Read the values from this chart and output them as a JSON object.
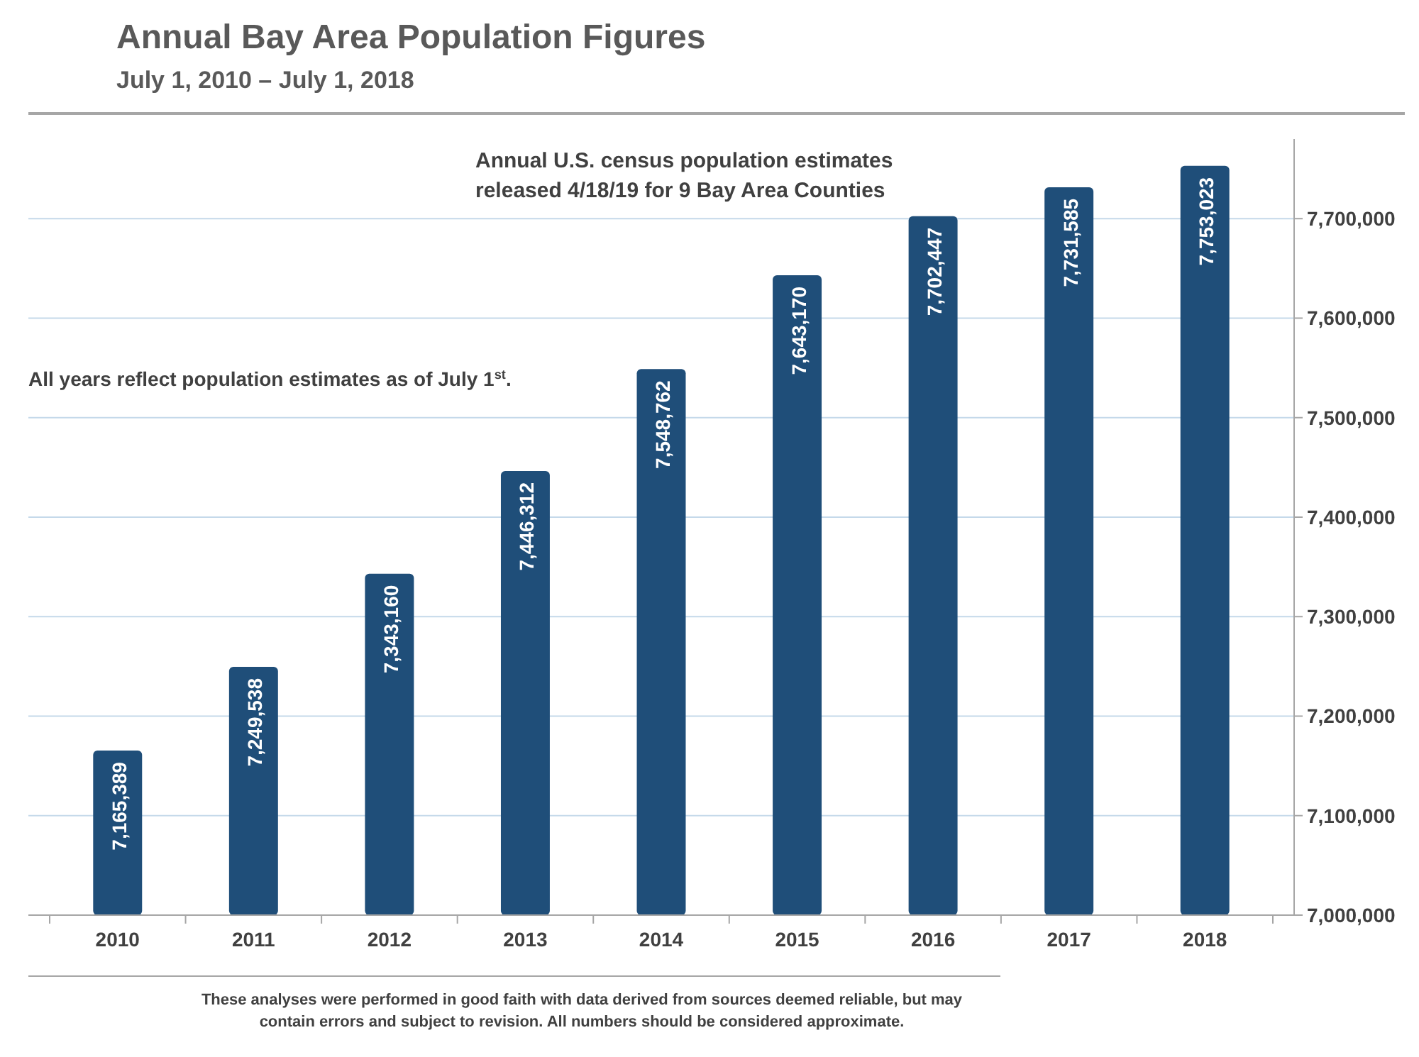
{
  "chart_data": {
    "type": "bar",
    "title": "Annual Bay Area Population Figures",
    "subtitle": "July 1, 2010 – July 1, 2018",
    "categories": [
      "2010",
      "2011",
      "2012",
      "2013",
      "2014",
      "2015",
      "2016",
      "2017",
      "2018"
    ],
    "values": [
      7165389,
      7249538,
      7343160,
      7446312,
      7548762,
      7643170,
      7702447,
      7731585,
      7753023
    ],
    "color": "#1f4e79",
    "ylim": [
      7000000,
      7780000
    ],
    "yticks": [
      {
        "value": 7000000,
        "label": "7,000,000"
      },
      {
        "value": 7100000,
        "label": "7,100,000"
      },
      {
        "value": 7200000,
        "label": "7,200,000"
      },
      {
        "value": 7300000,
        "label": "7,300,000"
      },
      {
        "value": 7400000,
        "label": "7,400,000"
      },
      {
        "value": 7500000,
        "label": "7,500,000"
      },
      {
        "value": 7600000,
        "label": "7,600,000"
      },
      {
        "value": 7700000,
        "label": "7,700,000"
      }
    ],
    "value_labels": [
      "7,165,389",
      "7,249,538",
      "7,343,160",
      "7,446,312",
      "7,548,762",
      "7,643,170",
      "7,702,447",
      "7,731,585",
      "7,753,023"
    ],
    "grid": "y",
    "annotations": [
      "Annual U.S. census population estimates\nreleased 4/18/19 for 9 Bay Area Counties",
      "All years reflect population estimates as of July 1$^{st}$.",
      "These analyses were performed in good faith with data derived from sources deemed reliable, but may\ncontain errors and subject to revision.  All numbers should be considered approximate."
    ]
  }
}
